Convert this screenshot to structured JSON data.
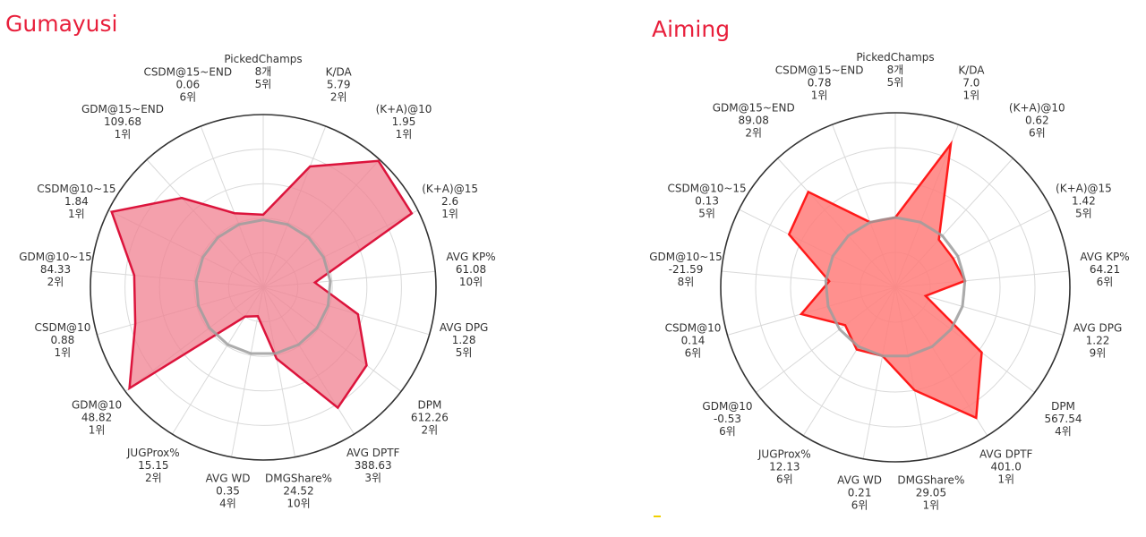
{
  "colors": {
    "title": "#e8203c",
    "outline": "#dc143c",
    "fill_left": "#f08090",
    "fill_right": "#ff7c7a",
    "stroke_right": "#ff1a1a",
    "ring": "#333333",
    "grid": "#d9d9d9",
    "average": "#9e9e9e"
  },
  "axes": [
    "PickedChamps",
    "K/DA",
    "(K+A)@10",
    "(K+A)@15",
    "AVG KP%",
    "AVG DPG",
    "DPM",
    "AVG DPTF",
    "DMGShare%",
    "AVG WD",
    "JUGProx%",
    "GDM@10",
    "CSDM@10",
    "GDM@10~15",
    "CSDM@10~15",
    "GDM@15~END",
    "CSDM@15~END"
  ],
  "chart_data": [
    {
      "type": "radar",
      "title": "Gumayusi",
      "series": [
        {
          "values": [
            "8개",
            "5.79",
            "1.95",
            "2.6",
            "61.08",
            "1.28",
            "612.26",
            "388.63",
            "24.52",
            "0.35",
            "15.15",
            "48.82",
            "0.88",
            "84.33",
            "1.84",
            "109.68",
            "0.06"
          ],
          "ranks": [
            "5위",
            "2위",
            "1위",
            "1위",
            "10위",
            "5위",
            "2위",
            "3위",
            "10위",
            "4위",
            "2위",
            "1위",
            "1위",
            "2위",
            "1위",
            "1위",
            "6위"
          ],
          "scores": [
            0.42,
            0.75,
            0.99,
            0.96,
            0.3,
            0.57,
            0.75,
            0.82,
            0.42,
            0.17,
            0.2,
            0.97,
            0.77,
            0.75,
            0.98,
            0.7,
            0.46
          ]
        }
      ],
      "average": [
        0.39,
        0.39,
        0.39,
        0.39,
        0.39,
        0.39,
        0.39,
        0.39,
        0.39,
        0.39,
        0.39,
        0.39,
        0.39,
        0.39,
        0.39,
        0.39,
        0.39
      ]
    },
    {
      "type": "radar",
      "title": "Aiming",
      "series": [
        {
          "values": [
            "8개",
            "7.0",
            "0.62",
            "1.42",
            "64.21",
            "1.22",
            "567.54",
            "401.0",
            "29.05",
            "0.21",
            "12.13",
            "-0.53",
            "0.14",
            "-21.59",
            "0.13",
            "89.08",
            "0.78"
          ],
          "ranks": [
            "5위",
            "1위",
            "6위",
            "5위",
            "6위",
            "9위",
            "4위",
            "1위",
            "1위",
            "6위",
            "6위",
            "6위",
            "6위",
            "8위",
            "5위",
            "2위",
            "1위"
          ],
          "scores": [
            0.4,
            0.88,
            0.37,
            0.37,
            0.4,
            0.18,
            0.62,
            0.88,
            0.6,
            0.4,
            0.42,
            0.36,
            0.56,
            0.38,
            0.68,
            0.74,
            0.4
          ]
        }
      ],
      "average": [
        0.4,
        0.4,
        0.4,
        0.4,
        0.4,
        0.4,
        0.4,
        0.4,
        0.4,
        0.4,
        0.4,
        0.4,
        0.4,
        0.4,
        0.4,
        0.4,
        0.4
      ]
    }
  ]
}
